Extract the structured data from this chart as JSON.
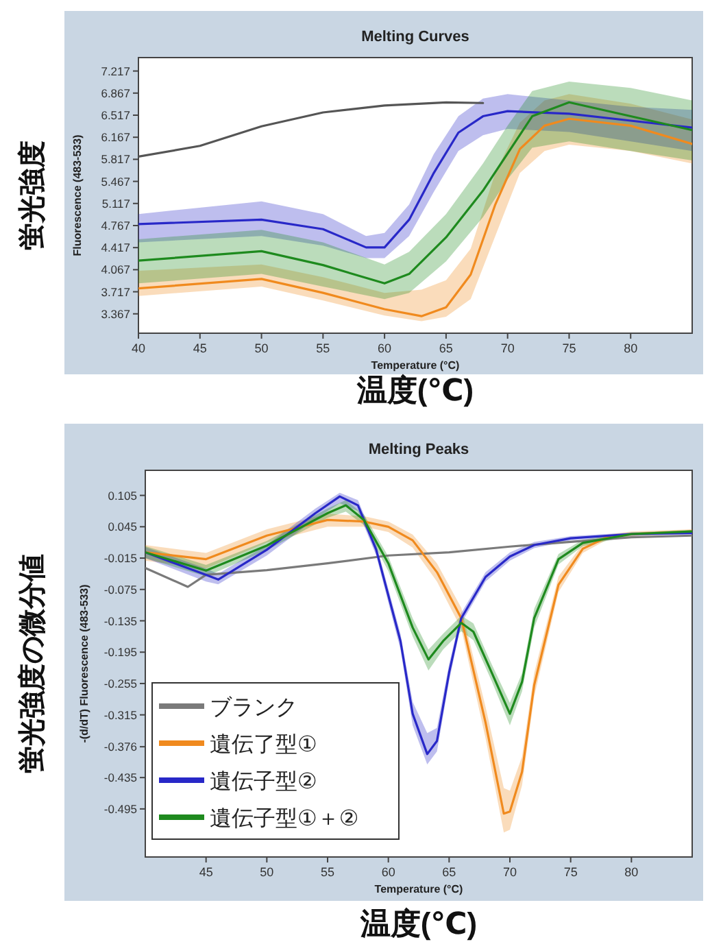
{
  "chart_data": [
    {
      "type": "line",
      "title": "Melting Curves",
      "xlabel": "Temperature (°C)",
      "ylabel": "Fluorescence (483-533)",
      "annotations": [
        "温度(℃)",
        "蛍光強度"
      ],
      "xlim": [
        40,
        85
      ],
      "ylim": [
        3.06,
        7.43
      ],
      "xticks": [
        40,
        45,
        50,
        55,
        60,
        65,
        70,
        75,
        80
      ],
      "yticks": [
        {
          "value": 7.217,
          "label": "7.217"
        },
        {
          "value": 6.867,
          "label": "6.867"
        },
        {
          "value": 6.517,
          "label": "6.517"
        },
        {
          "value": 6.167,
          "label": "6.167"
        },
        {
          "value": 5.817,
          "label": "5.817"
        },
        {
          "value": 5.467,
          "label": "5.467"
        },
        {
          "value": 5.117,
          "label": "5.117"
        },
        {
          "value": 4.767,
          "label": "4.767"
        },
        {
          "value": 4.417,
          "label": "4.417"
        },
        {
          "value": 4.067,
          "label": "4.067"
        },
        {
          "value": 3.717,
          "label": "3.717"
        },
        {
          "value": 3.367,
          "label": "3.367"
        }
      ],
      "series": [
        {
          "color": "#555555",
          "x": [
            40,
            45,
            50,
            55,
            60,
            65,
            68
          ],
          "values": [
            5.86,
            6.03,
            6.34,
            6.56,
            6.67,
            6.72,
            6.71
          ]
        },
        {
          "color": "#f08a1e",
          "x": [
            40,
            50,
            55,
            60,
            63,
            65,
            67,
            69,
            71,
            73,
            75,
            80,
            85
          ],
          "values": [
            3.77,
            3.92,
            3.7,
            3.44,
            3.33,
            3.47,
            3.99,
            5.1,
            5.98,
            6.35,
            6.46,
            6.35,
            6.06
          ],
          "lower": [
            3.65,
            3.8,
            3.58,
            3.34,
            3.25,
            3.32,
            3.6,
            4.6,
            5.6,
            5.95,
            6.05,
            5.95,
            5.75
          ],
          "upper": [
            4.05,
            4.15,
            3.95,
            3.7,
            3.75,
            3.9,
            4.4,
            5.6,
            6.4,
            6.75,
            6.85,
            6.7,
            6.45
          ]
        },
        {
          "color": "#2828c8",
          "x": [
            40,
            50,
            55,
            58.5,
            60,
            62,
            64,
            66,
            68,
            70,
            75,
            80,
            85
          ],
          "values": [
            4.79,
            4.86,
            4.71,
            4.42,
            4.42,
            4.86,
            5.6,
            6.24,
            6.5,
            6.58,
            6.54,
            6.43,
            6.32
          ],
          "lower": [
            4.5,
            4.6,
            4.45,
            4.25,
            4.25,
            4.6,
            5.3,
            5.95,
            6.2,
            6.3,
            6.25,
            6.1,
            5.95
          ],
          "upper": [
            4.95,
            5.15,
            4.95,
            4.6,
            4.65,
            5.1,
            5.9,
            6.5,
            6.78,
            6.85,
            6.75,
            6.65,
            6.6
          ]
        },
        {
          "color": "#1e8a1e",
          "x": [
            40,
            50,
            55,
            60,
            62,
            65,
            68,
            70,
            72,
            75,
            80,
            85
          ],
          "values": [
            4.21,
            4.36,
            4.14,
            3.85,
            4.0,
            4.58,
            5.32,
            5.91,
            6.5,
            6.72,
            6.5,
            6.28
          ],
          "lower": [
            3.85,
            4.0,
            3.8,
            3.6,
            3.7,
            4.2,
            4.9,
            5.5,
            6.0,
            6.1,
            5.95,
            5.8
          ],
          "upper": [
            4.55,
            4.7,
            4.5,
            4.15,
            4.35,
            4.95,
            5.75,
            6.35,
            6.9,
            7.05,
            6.95,
            6.75
          ]
        }
      ]
    },
    {
      "type": "line",
      "title": "Melting Peaks",
      "xlabel": "Temperature (°C)",
      "ylabel": "-(d/dT) Fluorescence (483-533)",
      "annotations": [
        "温度(℃)",
        "蛍光強度の微分値"
      ],
      "legend": "bottom left",
      "xlim": [
        40,
        85
      ],
      "ylim": [
        -0.587,
        0.153
      ],
      "xticks": [
        45,
        50,
        55,
        60,
        65,
        70,
        75,
        80
      ],
      "yticks": [
        {
          "value": 0.105,
          "label": "0.105"
        },
        {
          "value": 0.045,
          "label": "0.045"
        },
        {
          "value": -0.015,
          "label": "-0.015"
        },
        {
          "value": -0.075,
          "label": "-0.075"
        },
        {
          "value": -0.135,
          "label": "-0.135"
        },
        {
          "value": -0.195,
          "label": "-0.195"
        },
        {
          "value": -0.255,
          "label": "-0.255"
        },
        {
          "value": -0.315,
          "label": "-0.315"
        },
        {
          "value": -0.376,
          "label": "-0.376"
        },
        {
          "value": -0.435,
          "label": "-0.435"
        },
        {
          "value": -0.495,
          "label": "-0.495"
        }
      ],
      "series": [
        {
          "name": "ブランク",
          "color": "#7a7a7a",
          "x": [
            40,
            43.5,
            45,
            50,
            55,
            60,
            65,
            70,
            75,
            80,
            85
          ],
          "values": [
            -0.034,
            -0.07,
            -0.047,
            -0.038,
            -0.025,
            -0.01,
            -0.004,
            0.007,
            0.016,
            0.025,
            0.028
          ]
        },
        {
          "name": "遺伝了型①",
          "color": "#f08a1e",
          "x": [
            40,
            45,
            50,
            55,
            58,
            60,
            62,
            64,
            66,
            68,
            69.5,
            70,
            71,
            72,
            74,
            76,
            78,
            80,
            85
          ],
          "values": [
            -0.004,
            -0.017,
            0.028,
            0.058,
            0.055,
            0.045,
            0.019,
            -0.042,
            -0.13,
            -0.33,
            -0.504,
            -0.5,
            -0.424,
            -0.258,
            -0.066,
            0.003,
            0.025,
            0.031,
            0.036
          ],
          "lower": [
            -0.02,
            -0.035,
            0.015,
            0.045,
            0.045,
            0.035,
            0.005,
            -0.06,
            -0.15,
            -0.36,
            -0.54,
            -0.535,
            -0.45,
            -0.28,
            -0.08,
            -0.005,
            0.02,
            0.027,
            0.032
          ],
          "upper": [
            0.01,
            -0.005,
            0.04,
            0.07,
            0.065,
            0.055,
            0.03,
            -0.025,
            -0.11,
            -0.3,
            -0.455,
            -0.46,
            -0.395,
            -0.235,
            -0.05,
            0.012,
            0.03,
            0.036,
            0.04
          ]
        },
        {
          "name": "遺伝子型②",
          "color": "#2828c8",
          "x": [
            40,
            45,
            46,
            50,
            54,
            56,
            57.5,
            59,
            61,
            62,
            63.2,
            64,
            65,
            66,
            68,
            70,
            72,
            75,
            80,
            85
          ],
          "values": [
            -0.004,
            -0.047,
            -0.056,
            0.001,
            0.071,
            0.103,
            0.086,
            0.001,
            -0.174,
            -0.313,
            -0.39,
            -0.365,
            -0.234,
            -0.13,
            -0.051,
            -0.012,
            0.01,
            0.023,
            0.031,
            0.033
          ],
          "lower": [
            -0.015,
            -0.06,
            -0.065,
            -0.01,
            0.06,
            0.09,
            0.075,
            -0.01,
            -0.19,
            -0.335,
            -0.41,
            -0.385,
            -0.25,
            -0.14,
            -0.06,
            -0.02,
            0.004,
            0.019,
            0.028,
            0.03
          ],
          "upper": [
            0.006,
            -0.035,
            -0.045,
            0.01,
            0.08,
            0.11,
            0.096,
            0.012,
            -0.16,
            -0.29,
            -0.35,
            -0.34,
            -0.218,
            -0.12,
            -0.042,
            -0.004,
            0.016,
            0.027,
            0.034,
            0.036
          ]
        },
        {
          "name": "遺伝子型①＋②",
          "color": "#1e8a1e",
          "x": [
            40,
            45,
            50,
            55,
            56.5,
            58,
            60,
            62,
            63.3,
            64.5,
            66,
            67,
            68.5,
            70,
            71,
            72,
            74,
            76,
            80,
            85
          ],
          "values": [
            -0.004,
            -0.039,
            0.009,
            0.071,
            0.086,
            0.058,
            -0.025,
            -0.148,
            -0.209,
            -0.174,
            -0.139,
            -0.156,
            -0.234,
            -0.313,
            -0.252,
            -0.13,
            -0.017,
            0.014,
            0.031,
            0.036
          ],
          "lower": [
            -0.015,
            -0.05,
            0.0,
            0.062,
            0.074,
            0.048,
            -0.04,
            -0.165,
            -0.23,
            -0.19,
            -0.155,
            -0.172,
            -0.25,
            -0.335,
            -0.27,
            -0.148,
            -0.027,
            0.008,
            0.028,
            0.033
          ],
          "upper": [
            0.008,
            -0.028,
            0.018,
            0.08,
            0.096,
            0.068,
            -0.012,
            -0.13,
            -0.19,
            -0.16,
            -0.125,
            -0.14,
            -0.218,
            -0.292,
            -0.235,
            -0.112,
            -0.007,
            0.02,
            0.034,
            0.039
          ]
        }
      ]
    }
  ]
}
